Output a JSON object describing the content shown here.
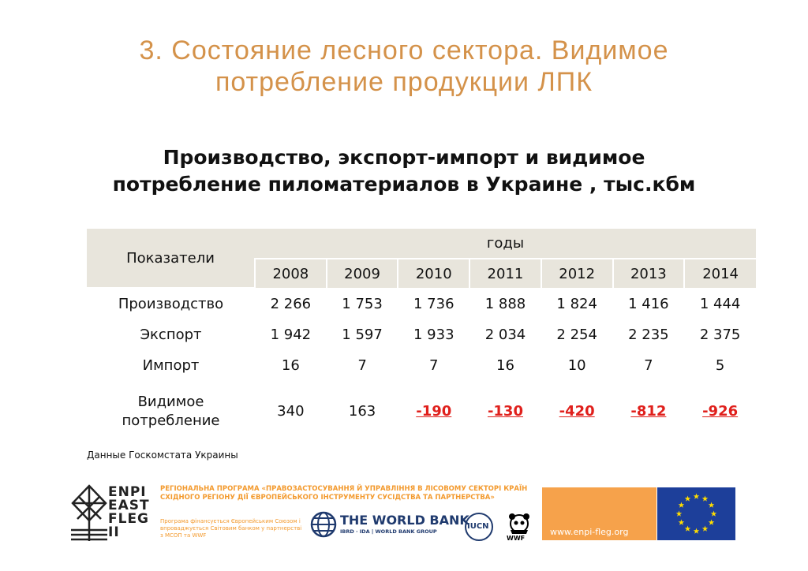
{
  "title": [
    "3. Состояние лесного сектора. Видимое",
    "потребление продукции ЛПК"
  ],
  "subtitle": [
    "Производство, экспорт-импорт и видимое",
    "потребление пиломатериалов в Украине , тыс.кбм"
  ],
  "table": {
    "indicator_header": "Показатели",
    "years_header": "годы",
    "years": [
      "2008",
      "2009",
      "2010",
      "2011",
      "2012",
      "2013",
      "2014"
    ],
    "rows": [
      {
        "label": [
          "Производство"
        ],
        "values": [
          "2 266",
          "1 753",
          "1 736",
          "1 888",
          "1 824",
          "1 416",
          "1 444"
        ]
      },
      {
        "label": [
          "Экспорт"
        ],
        "values": [
          "1 942",
          "1 597",
          "1 933",
          "2 034",
          "2 254",
          "2 235",
          "2 375"
        ]
      },
      {
        "label": [
          "Импорт"
        ],
        "values": [
          "16",
          "7",
          "7",
          "16",
          "10",
          "7",
          "5"
        ]
      },
      {
        "label": [
          "Видимое",
          "потребление"
        ],
        "values": [
          "340",
          "163",
          "-190",
          "-130",
          "-420",
          "-812",
          "-926"
        ]
      }
    ]
  },
  "source": "Данные Госкомстата Украины",
  "footer": {
    "logo": [
      "ENPI",
      "EAST",
      "FLEG",
      "II"
    ],
    "program": "РЕГІОНАЛЬНА ПРОГРАМА «ПРАВОЗАСТОСУВАННЯ Й УПРАВЛІННЯ В ЛІСОВОМУ СЕКТОРІ КРАЇН СХІДНОГО РЕГІОНУ ДІЇ ЄВРОПЕЙСЬКОГО ІНСТРУМЕНТУ СУСІДСТВА ТА ПАРТНЕРСТВА»",
    "program_note": "Програма фінансується Європейським Союзом і впроваджується Світовим банком у партнерстві з МСОП та WWF",
    "world_bank": "THE WORLD BANK",
    "world_bank_sub": "IBRD · IDA | WORLD BANK GROUP",
    "iucn": "IUCN",
    "wwf": "WWF",
    "url": "www.enpi-fleg.org"
  }
}
